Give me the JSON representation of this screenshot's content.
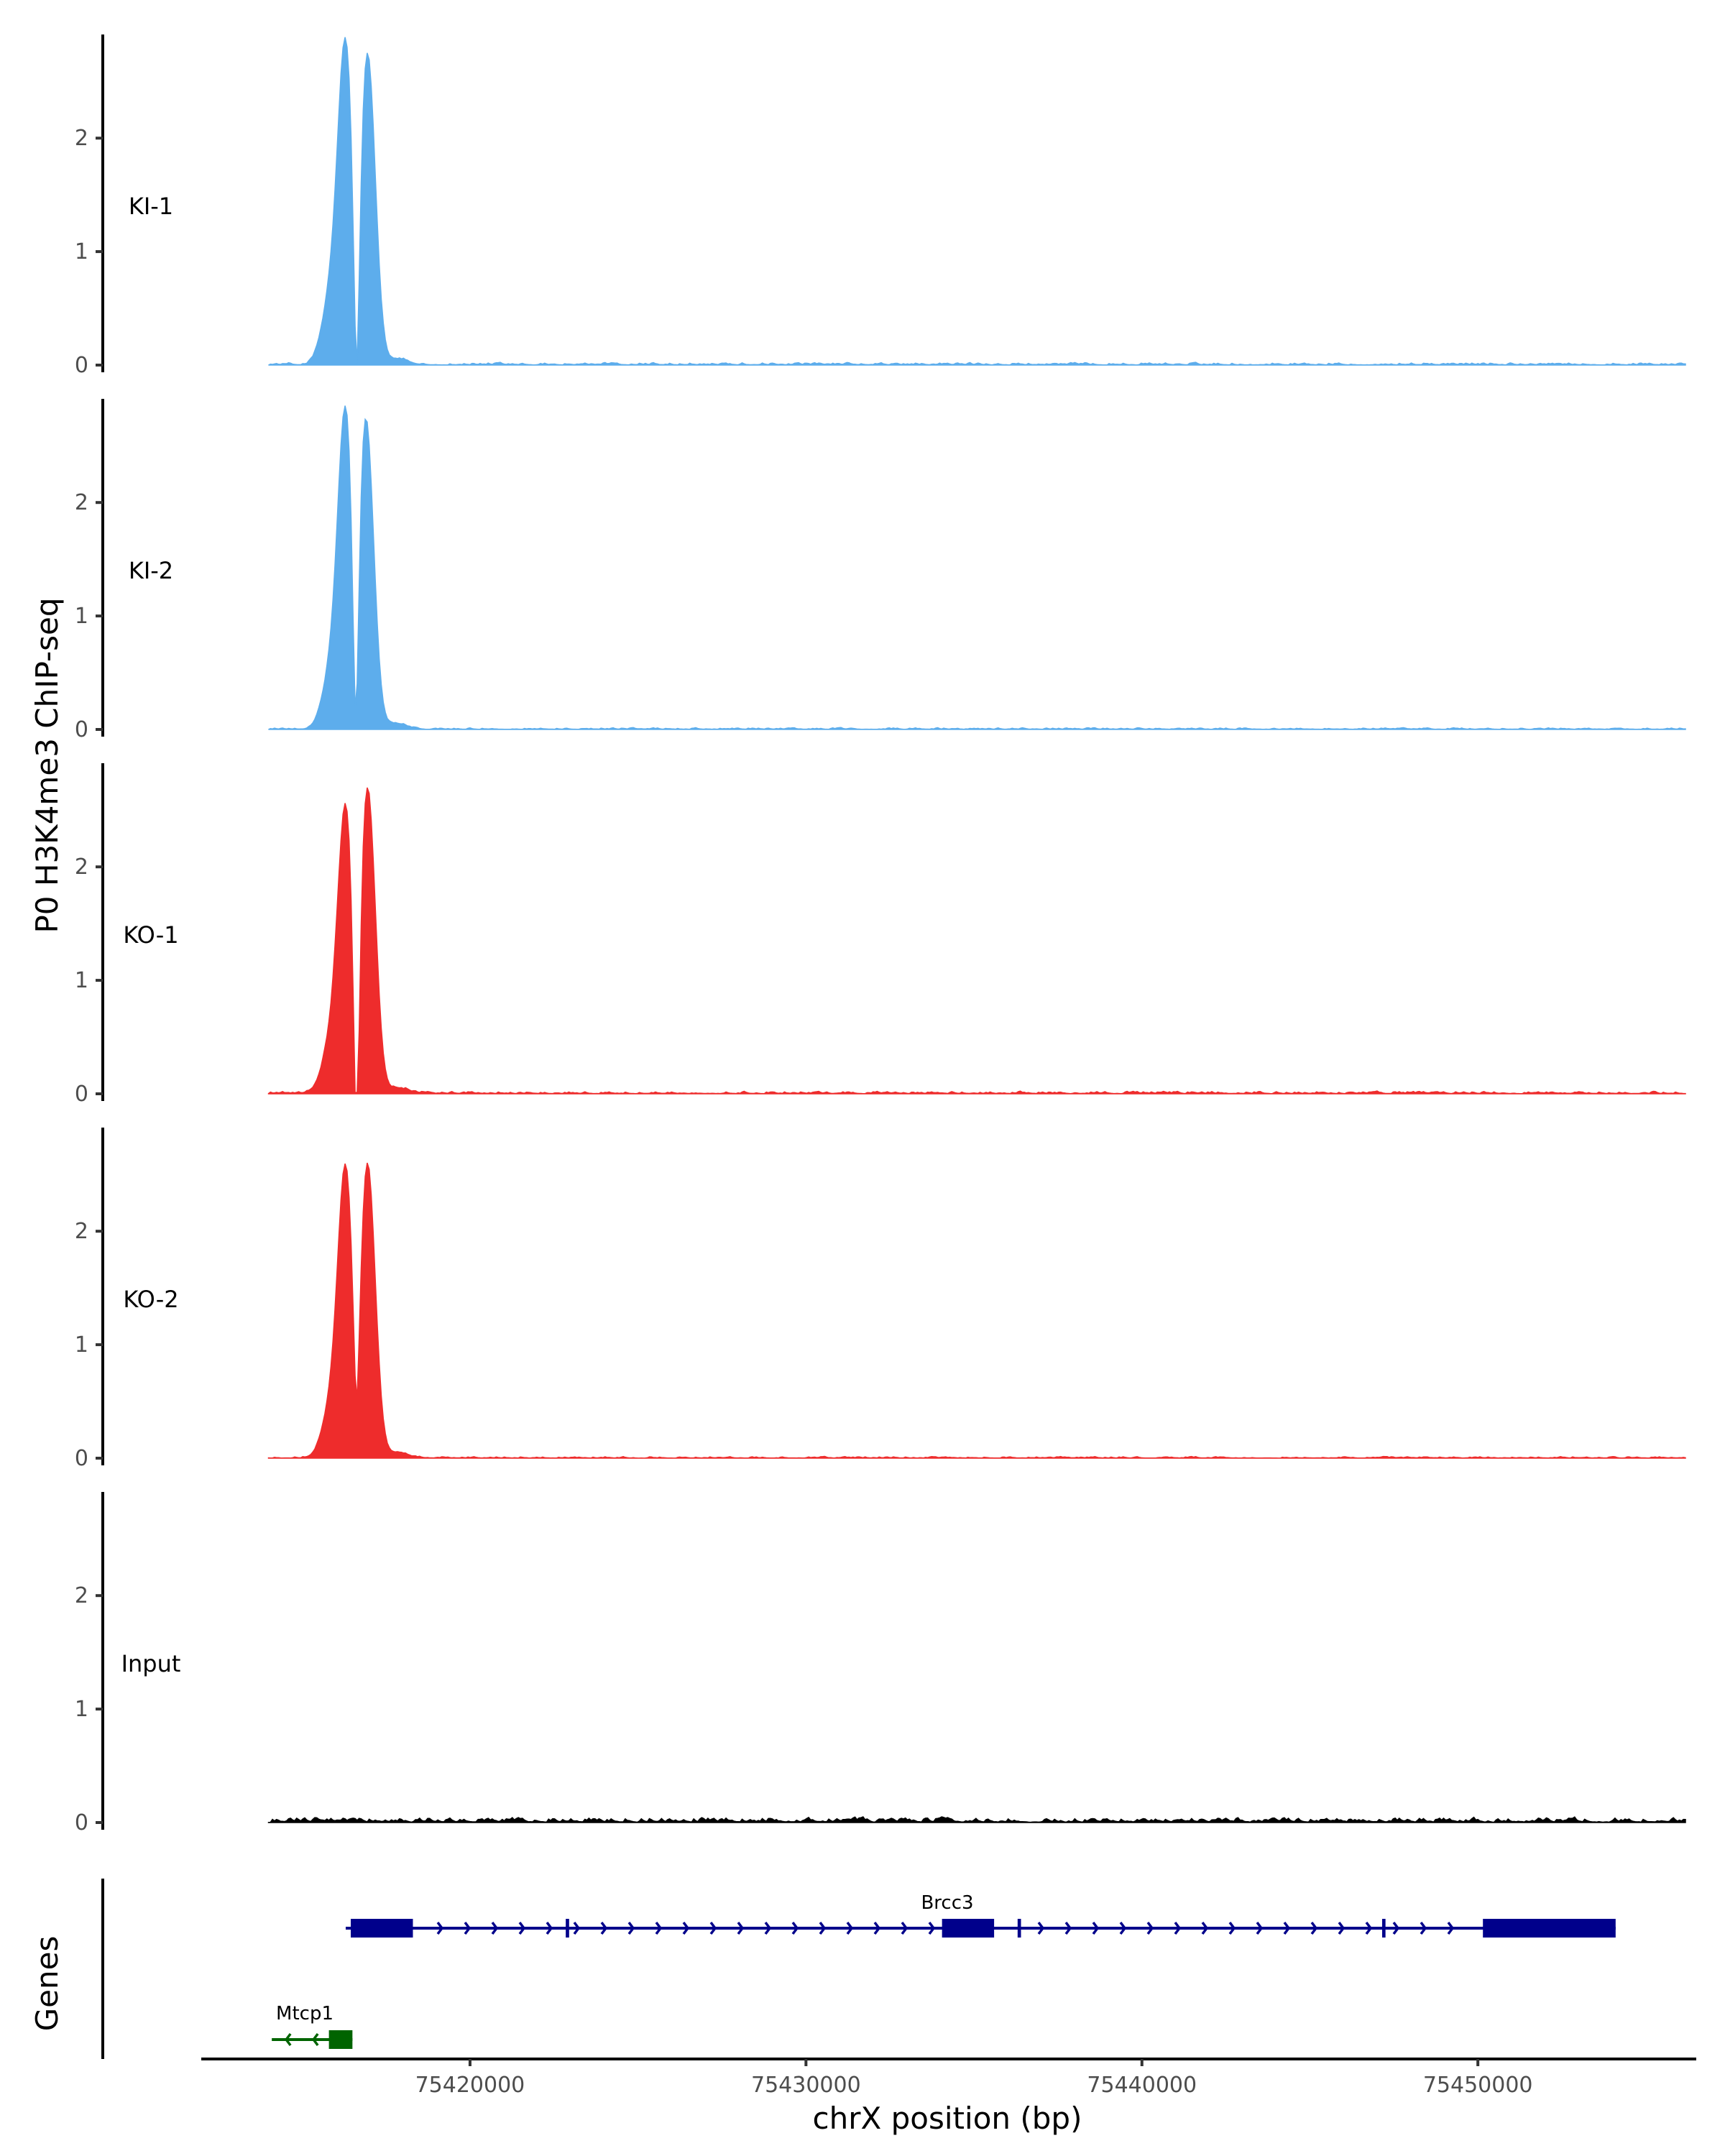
{
  "chart_data": {
    "type": "area",
    "chromosome": "chrX",
    "ylabel": "P0 H3K4me3 ChIP-seq",
    "xlabel": "chrX position (bp)",
    "genes_label": "Genes",
    "xlim": [
      75412000,
      75456500
    ],
    "x_ticks": [
      75420000,
      75430000,
      75440000,
      75450000
    ],
    "x_tick_labels": [
      "75420000",
      "75430000",
      "75440000",
      "75450000"
    ],
    "ylim": [
      0,
      2.85
    ],
    "y_ticks": [
      0,
      1,
      2
    ],
    "y_tick_labels": [
      "0",
      "1",
      "2"
    ],
    "tracks": [
      {
        "name": "KI-1",
        "color": "#5DADEC",
        "peaks": [
          {
            "center": 75416300,
            "height": 2.75
          },
          {
            "center": 75416950,
            "height": 2.75
          }
        ],
        "dip": 1.5,
        "shoulder": 0.55,
        "noise": 0.03
      },
      {
        "name": "KI-2",
        "color": "#5DADEC",
        "peaks": [
          {
            "center": 75416300,
            "height": 2.75
          },
          {
            "center": 75416900,
            "height": 2.75
          }
        ],
        "dip": 1.45,
        "shoulder": 0.45,
        "noise": 0.02
      },
      {
        "name": "KO-1",
        "color": "#EE2C2C",
        "peaks": [
          {
            "center": 75416300,
            "height": 2.45
          },
          {
            "center": 75416950,
            "height": 2.7
          }
        ],
        "dip": 1.2,
        "shoulder": 0.4,
        "noise": 0.03
      },
      {
        "name": "KO-2",
        "color": "#EE2C2C",
        "peaks": [
          {
            "center": 75416300,
            "height": 2.5
          },
          {
            "center": 75416950,
            "height": 2.6
          }
        ],
        "dip": 2.0,
        "shoulder": 0.4,
        "noise": 0.02
      },
      {
        "name": "Input",
        "color": "#000000",
        "peaks": [],
        "dip": 0,
        "shoulder": 0,
        "noise": 0.06
      }
    ],
    "signal_range": [
      75414000,
      75456200
    ],
    "genes": [
      {
        "name": "Brcc3",
        "color": "#00008B",
        "strand": "+",
        "start": 75416300,
        "end": 75454100,
        "exons": [
          [
            75416450,
            75418300
          ],
          [
            75422850,
            75422950
          ],
          [
            75434050,
            75435600
          ],
          [
            75436300,
            75436400
          ],
          [
            75447150,
            75447250
          ],
          [
            75450150,
            75454100
          ]
        ]
      },
      {
        "name": "Mtcp1",
        "color": "#006400",
        "strand": "-",
        "start": 75414100,
        "end": 75416500,
        "exons": [
          [
            75415800,
            75416500
          ]
        ]
      }
    ]
  }
}
